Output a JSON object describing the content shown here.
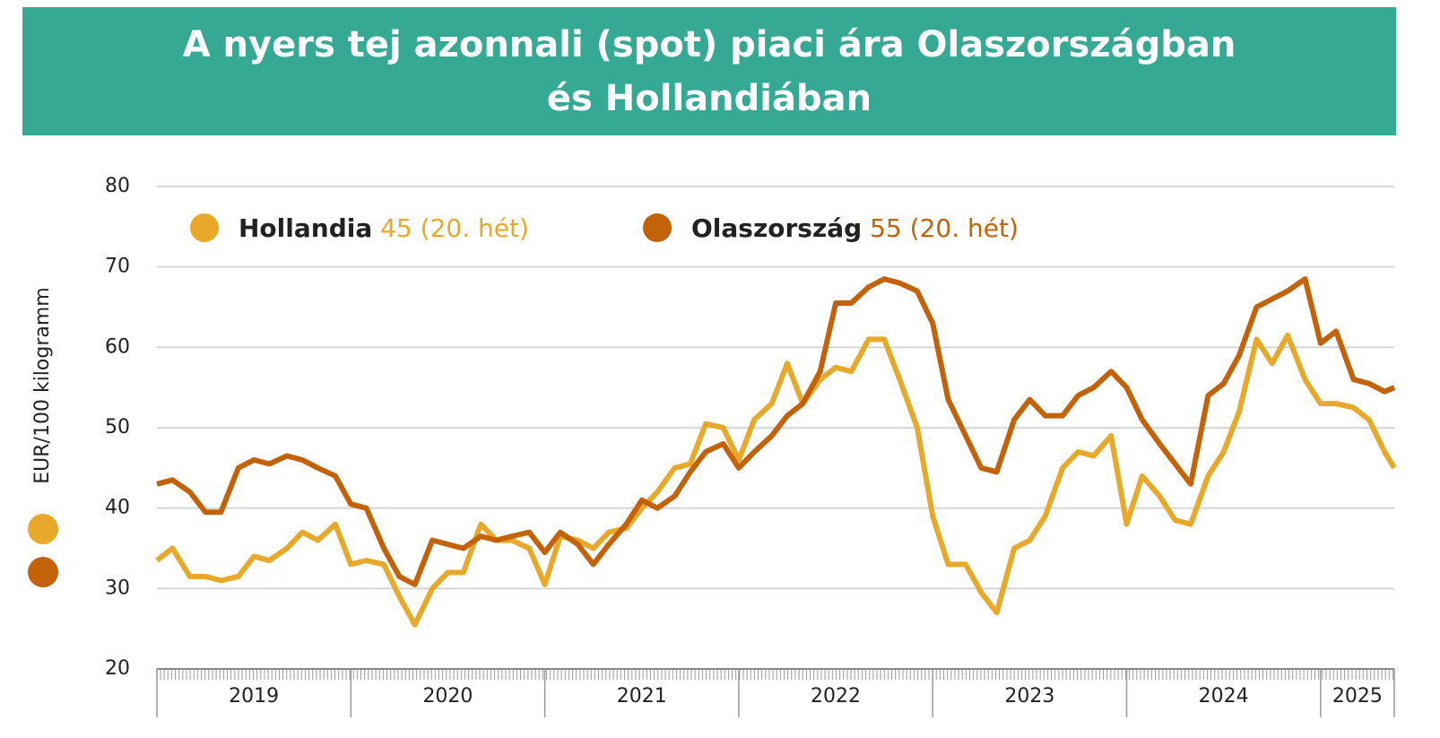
{
  "chart_data": {
    "type": "line",
    "title": [
      "A nyers tej azonnali (spot) piaci ára Olaszországban",
      "és Hollandiában"
    ],
    "y_label": "EUR/100 kilogramm",
    "x": [
      2019.0,
      2019.08,
      2019.17,
      2019.25,
      2019.33,
      2019.42,
      2019.5,
      2019.58,
      2019.67,
      2019.75,
      2019.83,
      2019.92,
      2020.0,
      2020.08,
      2020.17,
      2020.25,
      2020.33,
      2020.42,
      2020.5,
      2020.58,
      2020.67,
      2020.75,
      2020.83,
      2020.92,
      2021.0,
      2021.08,
      2021.17,
      2021.25,
      2021.33,
      2021.42,
      2021.5,
      2021.58,
      2021.67,
      2021.75,
      2021.83,
      2021.92,
      2022.0,
      2022.08,
      2022.17,
      2022.25,
      2022.33,
      2022.42,
      2022.5,
      2022.58,
      2022.67,
      2022.75,
      2022.83,
      2022.92,
      2023.0,
      2023.08,
      2023.17,
      2023.25,
      2023.33,
      2023.42,
      2023.5,
      2023.58,
      2023.67,
      2023.75,
      2023.83,
      2023.92,
      2024.0,
      2024.08,
      2024.17,
      2024.25,
      2024.33,
      2024.42,
      2024.5,
      2024.58,
      2024.67,
      2024.75,
      2024.83,
      2024.92,
      2025.0,
      2025.08,
      2025.17,
      2025.25,
      2025.33,
      2025.38
    ],
    "series": [
      {
        "name": "Hollandia",
        "latest_label": "45 (20. hét)",
        "color": "#e8a92a",
        "values": [
          33.5,
          35,
          31.5,
          31.5,
          31,
          31.5,
          34,
          33.5,
          35,
          37,
          36,
          38,
          33,
          33.5,
          33,
          29,
          25.5,
          30,
          32,
          32,
          38,
          36,
          36,
          35,
          30.5,
          36.5,
          36,
          35,
          37,
          37.5,
          40,
          42,
          45,
          45.5,
          50.5,
          50,
          46,
          51,
          53,
          58,
          53,
          56,
          57.5,
          57,
          61,
          61,
          56,
          50,
          39,
          33,
          33,
          29.5,
          27,
          35,
          36,
          39,
          45,
          47,
          46.5,
          49,
          38,
          44,
          41.5,
          38.5,
          38,
          44,
          47,
          52,
          61,
          58,
          61.5,
          56,
          53,
          53,
          52.5,
          51,
          47,
          45
        ]
      },
      {
        "name": "Olaszország",
        "latest_label": "55 (20. hét)",
        "color": "#c4620a",
        "values": [
          43,
          43.5,
          42,
          39.5,
          39.5,
          45,
          46,
          45.5,
          46.5,
          46,
          45,
          44,
          40.5,
          40,
          35,
          31.5,
          30.5,
          36,
          35.5,
          35,
          36.5,
          36,
          36.5,
          37,
          34.5,
          37,
          35.5,
          33,
          35.5,
          38,
          41,
          40,
          41.5,
          44.5,
          47,
          48,
          45,
          47,
          49,
          51.5,
          53,
          57,
          65.5,
          65.5,
          67.5,
          68.5,
          68,
          67,
          63,
          53.5,
          49,
          45,
          44.5,
          51,
          53.5,
          51.5,
          51.5,
          54,
          55,
          57,
          55,
          51,
          48,
          45.5,
          43,
          54,
          55.5,
          59,
          65,
          66,
          67,
          68.5,
          60.5,
          62,
          56,
          55.5,
          54.5,
          55
        ]
      }
    ],
    "xlim": [
      2019,
      2025.38
    ],
    "xticks": [
      2019,
      2020,
      2021,
      2022,
      2023,
      2024,
      2025
    ],
    "ylim": [
      20,
      80
    ],
    "yticks": [
      20,
      30,
      40,
      50,
      60,
      70,
      80
    ],
    "grid": true
  }
}
